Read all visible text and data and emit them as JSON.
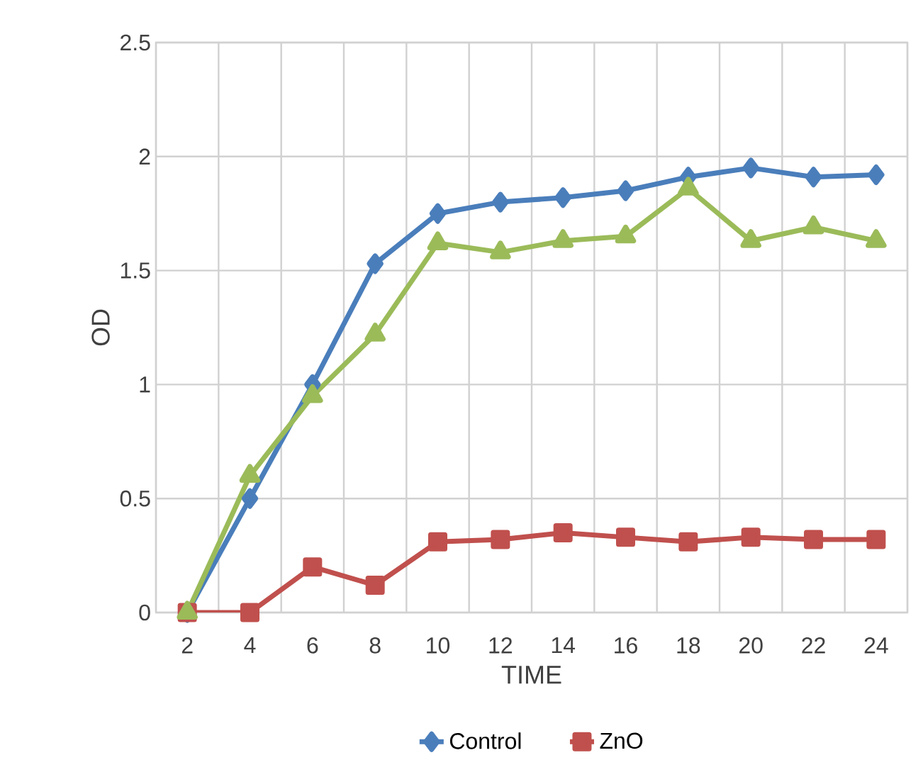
{
  "chart_data": {
    "type": "line",
    "xlabel": "TIME",
    "ylabel": "OD",
    "categories": [
      "2",
      "4",
      "6",
      "8",
      "10",
      "12",
      "14",
      "16",
      "18",
      "20",
      "22",
      "24"
    ],
    "series": [
      {
        "name": "Control",
        "color": "#4a7ebb",
        "marker": "diamond",
        "values": [
          0,
          0.5,
          1.0,
          1.53,
          1.75,
          1.8,
          1.82,
          1.85,
          1.91,
          1.95,
          1.91,
          1.92
        ]
      },
      {
        "name": "ZnO",
        "color": "#c0504d",
        "marker": "square",
        "values": [
          0,
          0,
          0.2,
          0.12,
          0.31,
          0.32,
          0.35,
          0.33,
          0.31,
          0.33,
          0.32,
          0.32
        ]
      },
      {
        "color": "#9bbb59",
        "marker": "triangle",
        "values": [
          0,
          0.6,
          0.95,
          1.22,
          1.62,
          1.58,
          1.63,
          1.65,
          1.86,
          1.63,
          1.69,
          1.63
        ]
      }
    ],
    "ylim": [
      0,
      2.5
    ],
    "yticks": [
      0,
      0.5,
      1,
      1.5,
      2,
      2.5
    ],
    "grid": true,
    "legend": "bottom"
  }
}
